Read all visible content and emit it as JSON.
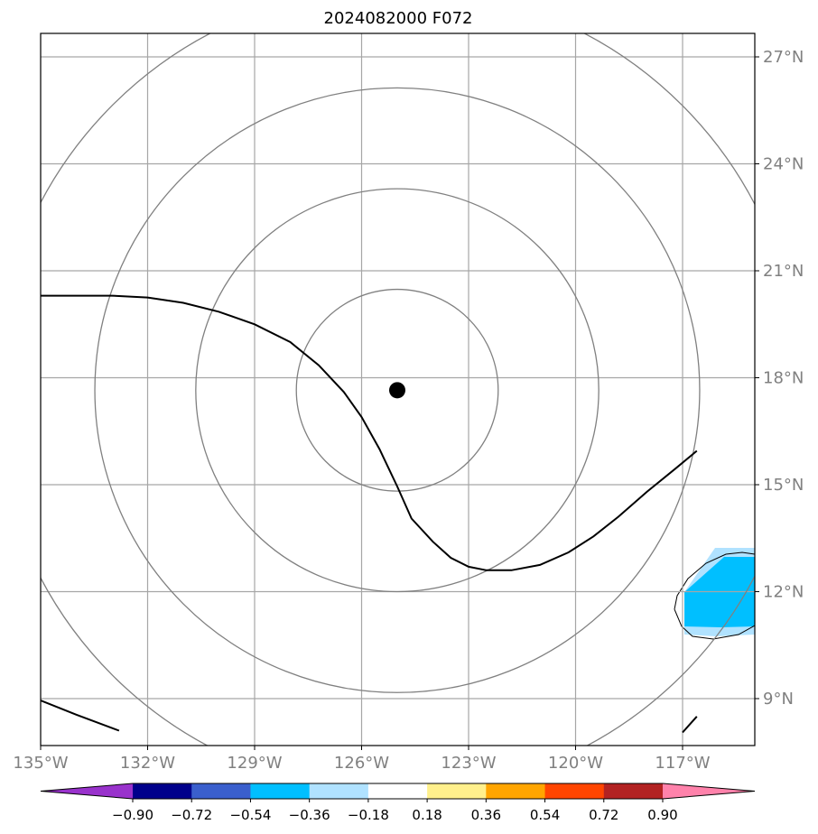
{
  "chart_data": {
    "type": "map",
    "title": "2024082000 F072",
    "projection": "plate-carree",
    "lon_range": [
      -135,
      -116.6
    ],
    "lat_range": [
      7.7,
      27.6
    ],
    "lon_ticks": [
      "135°W",
      "132°W",
      "129°W",
      "126°W",
      "123°W",
      "120°W",
      "117°W"
    ],
    "lat_ticks": [
      "9°N",
      "12°N",
      "15°N",
      "18°N",
      "21°N",
      "24°N",
      "27°N"
    ],
    "lon_tick_values": [
      -135,
      -132,
      -129,
      -126,
      -123,
      -120,
      -117
    ],
    "lat_tick_values": [
      9,
      12,
      15,
      18,
      21,
      24,
      27
    ],
    "grid": true,
    "storm_center": {
      "lon": -125.0,
      "lat": 17.65
    },
    "range_rings_deg": [
      2.83,
      5.65,
      8.48,
      11.3
    ],
    "contour_line": [
      [
        -135.0,
        20.3
      ],
      [
        -133.0,
        20.3
      ],
      [
        -132.0,
        20.25
      ],
      [
        -131.0,
        20.1
      ],
      [
        -130.0,
        19.85
      ],
      [
        -129.0,
        19.5
      ],
      [
        -128.0,
        19.0
      ],
      [
        -127.2,
        18.35
      ],
      [
        -126.5,
        17.6
      ],
      [
        -126.0,
        16.9
      ],
      [
        -125.5,
        16.0
      ],
      [
        -125.0,
        14.95
      ],
      [
        -124.6,
        14.05
      ],
      [
        -124.0,
        13.4
      ],
      [
        -123.5,
        12.95
      ],
      [
        -123.0,
        12.7
      ],
      [
        -122.5,
        12.6
      ],
      [
        -121.8,
        12.6
      ],
      [
        -121.0,
        12.75
      ],
      [
        -120.2,
        13.1
      ],
      [
        -119.5,
        13.55
      ],
      [
        -118.8,
        14.1
      ],
      [
        -118.0,
        14.8
      ],
      [
        -117.2,
        15.45
      ],
      [
        -116.6,
        15.95
      ]
    ],
    "bottom_left_line": [
      [
        -135.0,
        8.95
      ],
      [
        -134.0,
        8.55
      ],
      [
        -132.8,
        8.1
      ]
    ],
    "bottom_right_line": [
      [
        -117.0,
        8.05
      ],
      [
        -116.6,
        8.5
      ]
    ],
    "colorbar": {
      "ticks": [
        "−0.90",
        "−0.72",
        "−0.54",
        "−0.36",
        "−0.18",
        "0.18",
        "0.36",
        "0.54",
        "0.72",
        "0.90"
      ],
      "colors": [
        "#9932cc",
        "#00008b",
        "#3a5fcd",
        "#00bfff",
        "#b0e2ff",
        "#ffffff",
        "#fff08c",
        "#ffa500",
        "#ff4500",
        "#b22222",
        "#ff82ab"
      ],
      "extend": "both"
    },
    "shaded_regions": [
      {
        "color": "#b0e2ff",
        "lon_range": [
          -116.8,
          -116.6
        ],
        "lat_range": [
          10.8,
          13.0
        ]
      },
      {
        "color": "#00bfff",
        "lon_range": [
          -116.6,
          -116.6
        ],
        "lat_range": [
          11.0,
          12.9
        ]
      }
    ]
  }
}
